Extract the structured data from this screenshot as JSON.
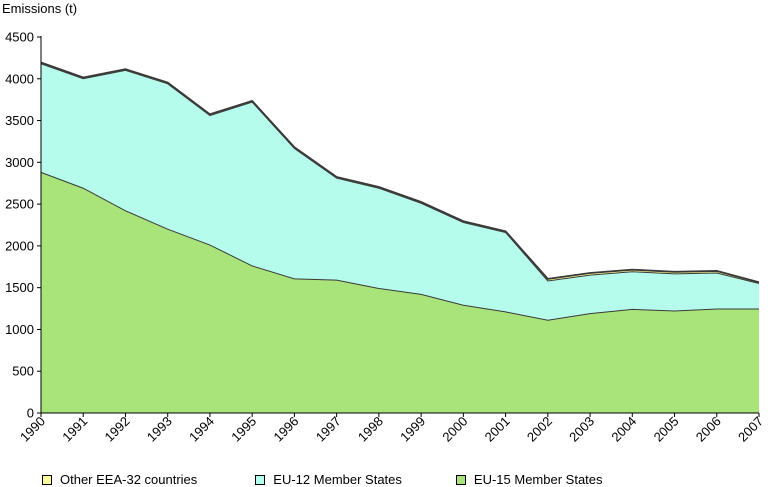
{
  "chart_data": {
    "type": "area",
    "stacked": true,
    "ylabel": "Emissions (t)",
    "xlabel": "",
    "title": "",
    "ylim": [
      0,
      4500
    ],
    "yticks": [
      0,
      500,
      1000,
      1500,
      2000,
      2500,
      3000,
      3500,
      4000,
      4500
    ],
    "grid": false,
    "legend_position": "bottom",
    "categories": [
      "1990",
      "1991",
      "1992",
      "1993",
      "1994",
      "1995",
      "1996",
      "1997",
      "1998",
      "1999",
      "2000",
      "2001",
      "2002",
      "2003",
      "2004",
      "2005",
      "2006",
      "2007"
    ],
    "series": [
      {
        "name": "EU-15 Member States",
        "color": "#a8e47a",
        "values": [
          2880,
          2690,
          2420,
          2200,
          2010,
          1760,
          1605,
          1590,
          1490,
          1420,
          1290,
          1210,
          1110,
          1190,
          1240,
          1220,
          1245,
          1245
        ]
      },
      {
        "name": "EU-12 Member States",
        "color": "#b6fcec",
        "values": [
          1300,
          1310,
          1680,
          1740,
          1550,
          1960,
          1560,
          1220,
          1200,
          1090,
          990,
          950,
          470,
          460,
          450,
          445,
          430,
          305
        ]
      },
      {
        "name": "Other EEA-32 countries",
        "color": "#ffff9a",
        "values": [
          15,
          15,
          15,
          15,
          15,
          15,
          15,
          15,
          15,
          15,
          15,
          15,
          25,
          25,
          25,
          25,
          25,
          15
        ]
      }
    ]
  }
}
